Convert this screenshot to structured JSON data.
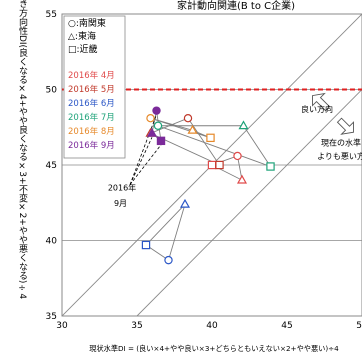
{
  "chart_data": {
    "type": "scatter",
    "title": "家計動向関連(B to C企業)",
    "xlabel": "現状水準DI = (良い×4+やや良い×3+どちらともいえない×2+やや悪い)÷4",
    "ylabel": "先行き方向性DI(良くなる×4+やや良くなる×3+不変×2+やや悪くなる)÷4",
    "xlim": [
      30,
      50
    ],
    "ylim": [
      35,
      55
    ],
    "xticks": [
      "30",
      "35",
      "40",
      "45",
      "50"
    ],
    "yticks": [
      "35",
      "40",
      "45",
      "50",
      "55"
    ],
    "reference_line_y": 50,
    "legend_regions": [
      {
        "label": "○:南関東",
        "marker": "circle"
      },
      {
        "label": "△:東海",
        "marker": "triangle"
      },
      {
        "label": "□:近畿",
        "marker": "square"
      }
    ],
    "legend_months": [
      {
        "label": "2016年 4月",
        "color": "#e04a4a"
      },
      {
        "label": "2016年 5月",
        "color": "#c0392b"
      },
      {
        "label": "2016年 6月",
        "color": "#2a56c6"
      },
      {
        "label": "2016年 7月",
        "color": "#1fa37a"
      },
      {
        "label": "2016年 8月",
        "color": "#e6892a"
      },
      {
        "label": "2016年 9月",
        "color": "#7b2a9a"
      }
    ],
    "series": [
      {
        "name": "南関東",
        "marker": "circle",
        "points": [
          {
            "month": "2016年 4月",
            "x": 41.7,
            "y": 45.6
          },
          {
            "month": "2016年 5月",
            "x": 38.4,
            "y": 48.1
          },
          {
            "month": "2016年 6月",
            "x": 37.1,
            "y": 38.7
          },
          {
            "month": "2016年 7月",
            "x": 36.4,
            "y": 47.6
          },
          {
            "month": "2016年 8月",
            "x": 35.9,
            "y": 48.1
          },
          {
            "month": "2016年 9月",
            "x": 36.3,
            "y": 48.6
          }
        ]
      },
      {
        "name": "東海",
        "marker": "triangle",
        "points": [
          {
            "month": "2016年 4月",
            "x": 42.0,
            "y": 44.0
          },
          {
            "month": "2016年 5月",
            "x": 35.9,
            "y": 47.1
          },
          {
            "month": "2016年 6月",
            "x": 38.2,
            "y": 42.4
          },
          {
            "month": "2016年 7月",
            "x": 42.1,
            "y": 47.6
          },
          {
            "month": "2016年 8月",
            "x": 38.7,
            "y": 47.3
          },
          {
            "month": "2016年 9月",
            "x": 36.0,
            "y": 47.1
          }
        ]
      },
      {
        "name": "近畿",
        "marker": "square",
        "points": [
          {
            "month": "2016年 4月",
            "x": 40.0,
            "y": 45.0
          },
          {
            "month": "2016年 5月",
            "x": 40.5,
            "y": 45.0
          },
          {
            "month": "2016年 6月",
            "x": 35.6,
            "y": 39.7
          },
          {
            "month": "2016年 7月",
            "x": 43.9,
            "y": 44.9
          },
          {
            "month": "2016年 8月",
            "x": 39.9,
            "y": 46.8
          },
          {
            "month": "2016年 9月",
            "x": 36.6,
            "y": 46.6
          }
        ]
      }
    ],
    "annotations": [
      {
        "text": "良い方向",
        "x": 47.0,
        "y": 48.5
      },
      {
        "text": "現在の水準",
        "x": 48.6,
        "y": 46.3
      },
      {
        "text": "よりも悪い方",
        "x": 48.6,
        "y": 45.4
      },
      {
        "text": "2016年",
        "x": 34.0,
        "y": 43.3
      },
      {
        "text": "9月",
        "x": 33.9,
        "y": 42.3
      }
    ],
    "grid": "y-major",
    "legend_placement": "top-left"
  }
}
